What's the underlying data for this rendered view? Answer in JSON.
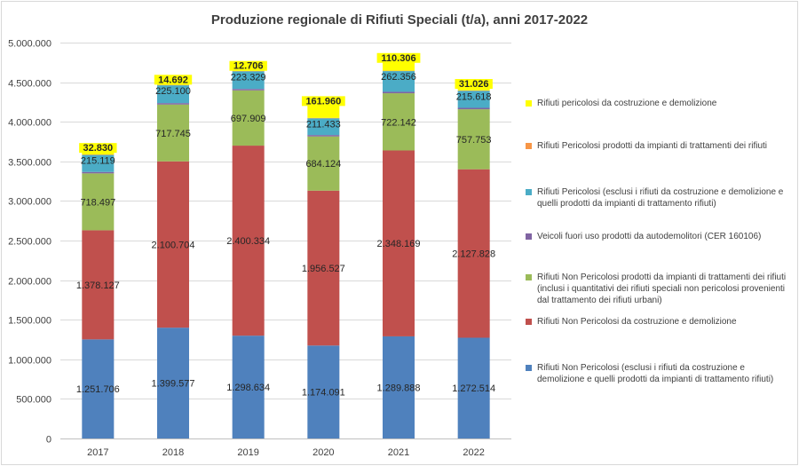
{
  "chart_data": {
    "type": "bar",
    "stacked": true,
    "title": "Produzione regionale di Rifiuti Speciali (t/a), anni 2017-2022",
    "xlabel": "",
    "ylabel": "",
    "ylim": [
      0,
      5000000
    ],
    "y_ticks": [
      0,
      500000,
      1000000,
      1500000,
      2000000,
      2500000,
      3000000,
      3500000,
      4000000,
      4500000,
      5000000
    ],
    "y_tick_labels": [
      "0",
      "500.000",
      "1.000.000",
      "1.500.000",
      "2.000.000",
      "2.500.000",
      "3.000.000",
      "3.500.000",
      "4.000.000",
      "4.500.000",
      "5.000.000"
    ],
    "grid": true,
    "legend_position": "right",
    "categories": [
      "2017",
      "2018",
      "2019",
      "2020",
      "2021",
      "2022"
    ],
    "series": [
      {
        "name": "Rifiuti Non Pericolosi (esclusi i rifiuti da costruzione e demolizione e quelli prodotti da impianti di trattamento rifiuti)",
        "color": "#4f81bd",
        "values": [
          1251706,
          1399577,
          1298634,
          1174091,
          1289888,
          1272514
        ],
        "labels": [
          "1.251.706",
          "1.399.577",
          "1.298.634",
          "1.174.091",
          "1.289.888",
          "1.272.514"
        ]
      },
      {
        "name": "Rifiuti Non Pericolosi da costruzione e demolizione",
        "color": "#c0504d",
        "values": [
          1378127,
          2100704,
          2400334,
          1956527,
          2348169,
          2127828
        ],
        "labels": [
          "1.378.127",
          "2.100.704",
          "2.400.334",
          "1.956.527",
          "2.348.169",
          "2.127.828"
        ]
      },
      {
        "name": "Rifiuti Non Pericolosi prodotti da impianti di trattamenti dei rifiuti (inclusi i quantitativi dei rifiuti speciali non pericolosi provenienti dal trattamento dei rifiuti urbani)",
        "color": "#9bbb59",
        "values": [
          718497,
          717745,
          697909,
          684124,
          722142,
          757753
        ],
        "labels": [
          "718.497",
          "717.745",
          "697.909",
          "684.124",
          "722.142",
          "757.753"
        ]
      },
      {
        "name": "Veicoli fuori uso prodotti da autodemolitori (CER 160106)",
        "color": "#8064a2",
        "values": [
          18000,
          18000,
          18000,
          18000,
          18000,
          18000
        ],
        "labels": [
          "",
          "",
          "",
          "",
          "",
          ""
        ]
      },
      {
        "name": "Rifiuti Pericolosi (esclusi i rifiuti da costruzione e demolizione e quelli prodotti da impianti di trattamento rifiuti)",
        "color": "#4bacc6",
        "values": [
          215119,
          225100,
          223329,
          211433,
          262356,
          215618
        ],
        "labels": [
          "215.119",
          "225.100",
          "223.329",
          "211.433",
          "262.356",
          "215.618"
        ]
      },
      {
        "name": "Rifiuti Pericolosi prodotti da impianti di trattamenti dei rifiuti",
        "color": "#f79646",
        "values": [
          5000,
          5000,
          5000,
          5000,
          5000,
          5000
        ],
        "labels": [
          "",
          "",
          "",
          "",
          "",
          ""
        ]
      },
      {
        "name": "Rifiuti pericolosi da costruzione e demolizione",
        "color": "#ffff00",
        "values": [
          32830,
          14692,
          12706,
          161960,
          110306,
          31026
        ],
        "labels": [
          "32.830",
          "14.692",
          "12.706",
          "161.960",
          "110.306",
          "31.026"
        ]
      }
    ]
  }
}
